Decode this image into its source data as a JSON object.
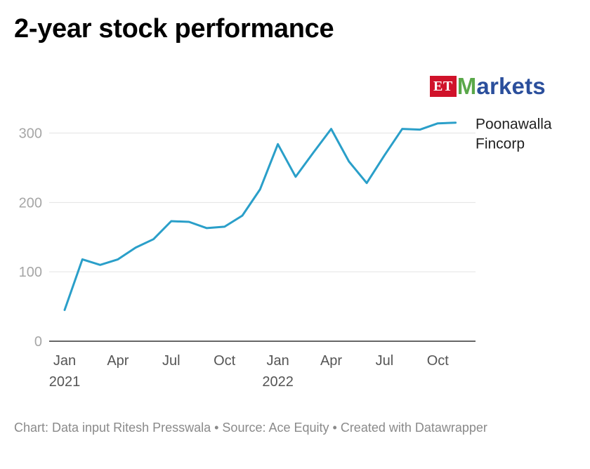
{
  "title": "2-year stock performance",
  "logo": {
    "et": "ET",
    "markets_accent": "M",
    "markets_rest": "arkets"
  },
  "footer": "Chart: Data input Ritesh Presswala • Source: Ace Equity • Created with Datawrapper",
  "colors": {
    "line": "#2a9fc9",
    "grid": "#e3e3e3",
    "axis": "#333333",
    "tick_text": "#a6a6a6",
    "x_tick_text": "#555555",
    "footer": "#8a8a8a",
    "et_red": "#d0122a",
    "markets_blue": "#2b4f9c",
    "markets_green": "#5aa84a"
  },
  "chart_data": {
    "type": "line",
    "title": "2-year stock performance",
    "xlabel": "",
    "ylabel": "",
    "ylim": [
      0,
      340
    ],
    "y_ticks": [
      0,
      100,
      200,
      300
    ],
    "grid": true,
    "x_ticks": [
      {
        "index": 0,
        "label": "Jan",
        "sub": "2021"
      },
      {
        "index": 3,
        "label": "Apr",
        "sub": ""
      },
      {
        "index": 6,
        "label": "Jul",
        "sub": ""
      },
      {
        "index": 9,
        "label": "Oct",
        "sub": ""
      },
      {
        "index": 12,
        "label": "Jan",
        "sub": "2022"
      },
      {
        "index": 15,
        "label": "Apr",
        "sub": ""
      },
      {
        "index": 18,
        "label": "Jul",
        "sub": ""
      },
      {
        "index": 21,
        "label": "Oct",
        "sub": ""
      }
    ],
    "series": [
      {
        "name": "Poonawalla Fincorp",
        "label_lines": [
          "Poonawalla",
          "Fincorp"
        ],
        "values": [
          45,
          118,
          110,
          118,
          135,
          147,
          173,
          172,
          163,
          165,
          181,
          219,
          284,
          237,
          272,
          306,
          259,
          228,
          268,
          306,
          305,
          314,
          315
        ]
      }
    ]
  }
}
